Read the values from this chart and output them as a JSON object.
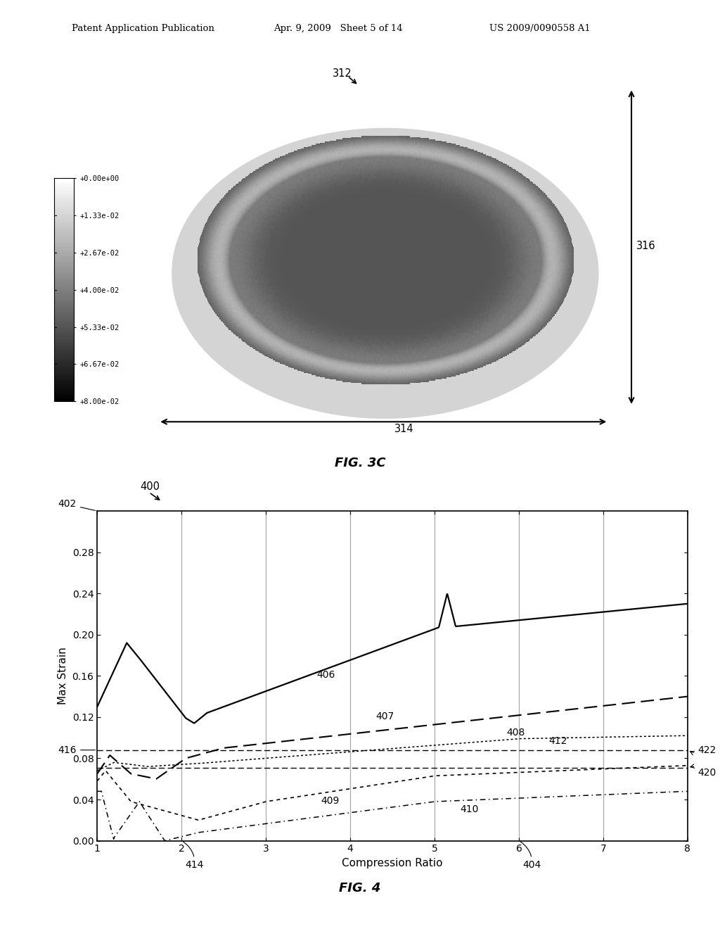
{
  "header_left": "Patent Application Publication",
  "header_mid": "Apr. 9, 2009   Sheet 5 of 14",
  "header_right": "US 2009/0090558 A1",
  "colorbar_labels": [
    "+8.00e-02",
    "+6.67e-02",
    "+5.33e-02",
    "+4.00e-02",
    "+2.67e-02",
    "+1.33e-02",
    "+0.00e+00"
  ],
  "fig3c_label": "FIG. 3C",
  "label_312": "312",
  "label_314": "314",
  "label_316": "316",
  "fig4_label": "FIG. 4",
  "label_400": "400",
  "label_402": "402",
  "label_404": "404",
  "label_406": "406",
  "label_407": "407",
  "label_408": "408",
  "label_409": "409",
  "label_410": "410",
  "label_412": "412",
  "label_414": "414",
  "label_416": "416",
  "label_420": "420",
  "label_422": "422",
  "xlabel": "Compression Ratio",
  "ylabel": "Max Strain",
  "ylim": [
    0.0,
    0.32
  ],
  "xlim": [
    1,
    8
  ],
  "yticks": [
    0.0,
    0.04,
    0.08,
    0.12,
    0.16,
    0.2,
    0.24,
    0.28
  ],
  "xticks": [
    1,
    2,
    3,
    4,
    5,
    6,
    7,
    8
  ],
  "hline_upper": 0.088,
  "hline_lower": 0.071,
  "bg_color": "#ffffff"
}
